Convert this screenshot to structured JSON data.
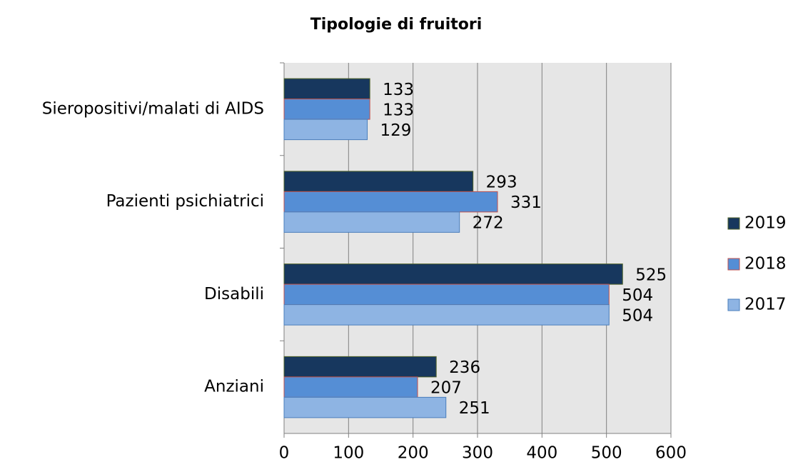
{
  "chart_data": {
    "type": "hbar",
    "title": "Tipologie di fruitori",
    "categories": [
      "Sieropositivi/malati di AIDS",
      "Pazienti psichiatrici",
      "Disabili",
      "Anziani"
    ],
    "series": [
      {
        "name": "2019",
        "color": "#17375e",
        "values": [
          133,
          293,
          525,
          236
        ]
      },
      {
        "name": "2018",
        "color": "#558ed5",
        "values": [
          133,
          331,
          504,
          207
        ]
      },
      {
        "name": "2017",
        "color": "#8eb4e3",
        "values": [
          129,
          272,
          504,
          251
        ]
      }
    ],
    "xlim": [
      0,
      600
    ],
    "xticks": [
      0,
      100,
      200,
      300,
      400,
      500,
      600
    ],
    "grid": true,
    "legend": "right"
  }
}
